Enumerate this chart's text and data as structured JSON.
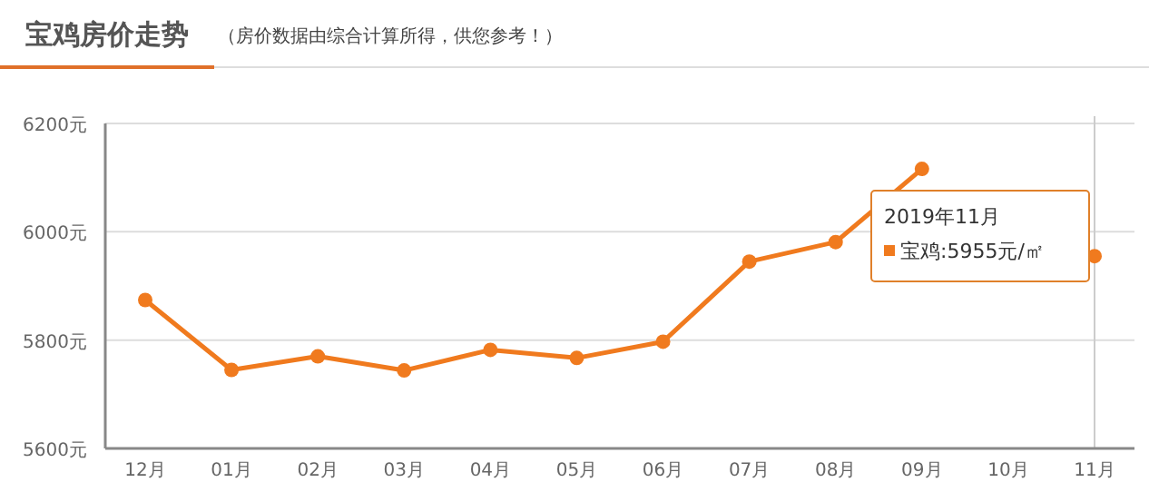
{
  "chart_data": {
    "type": "line",
    "title": "宝鸡房价走势",
    "subtitle": "（房价数据由综合计算所得，供您参考！）",
    "categories": [
      "12月",
      "01月",
      "02月",
      "03月",
      "04月",
      "05月",
      "06月",
      "07月",
      "08月",
      "09月",
      "10月",
      "11月"
    ],
    "series": [
      {
        "color": "#f07a1e",
        "values": [
          5874,
          5745,
          5770,
          5744,
          5782,
          5767,
          5797,
          5945,
          5981,
          6116,
          null,
          5955
        ]
      }
    ],
    "annotations": [
      "2019年11月",
      "宝鸡:5955元/㎡"
    ],
    "ref_lines": [
      {
        "axis": "x",
        "value": "11月",
        "color": "#cccccc"
      }
    ],
    "ylim": [
      5600,
      6200
    ],
    "yticks": [
      {
        "value": 5600,
        "label": "5600元"
      },
      {
        "value": 5800,
        "label": "5800元"
      },
      {
        "value": 6000,
        "label": "6000元"
      },
      {
        "value": 6200,
        "label": "6200元"
      }
    ],
    "grid": "y",
    "marker": "circle",
    "line_style": "solid"
  }
}
